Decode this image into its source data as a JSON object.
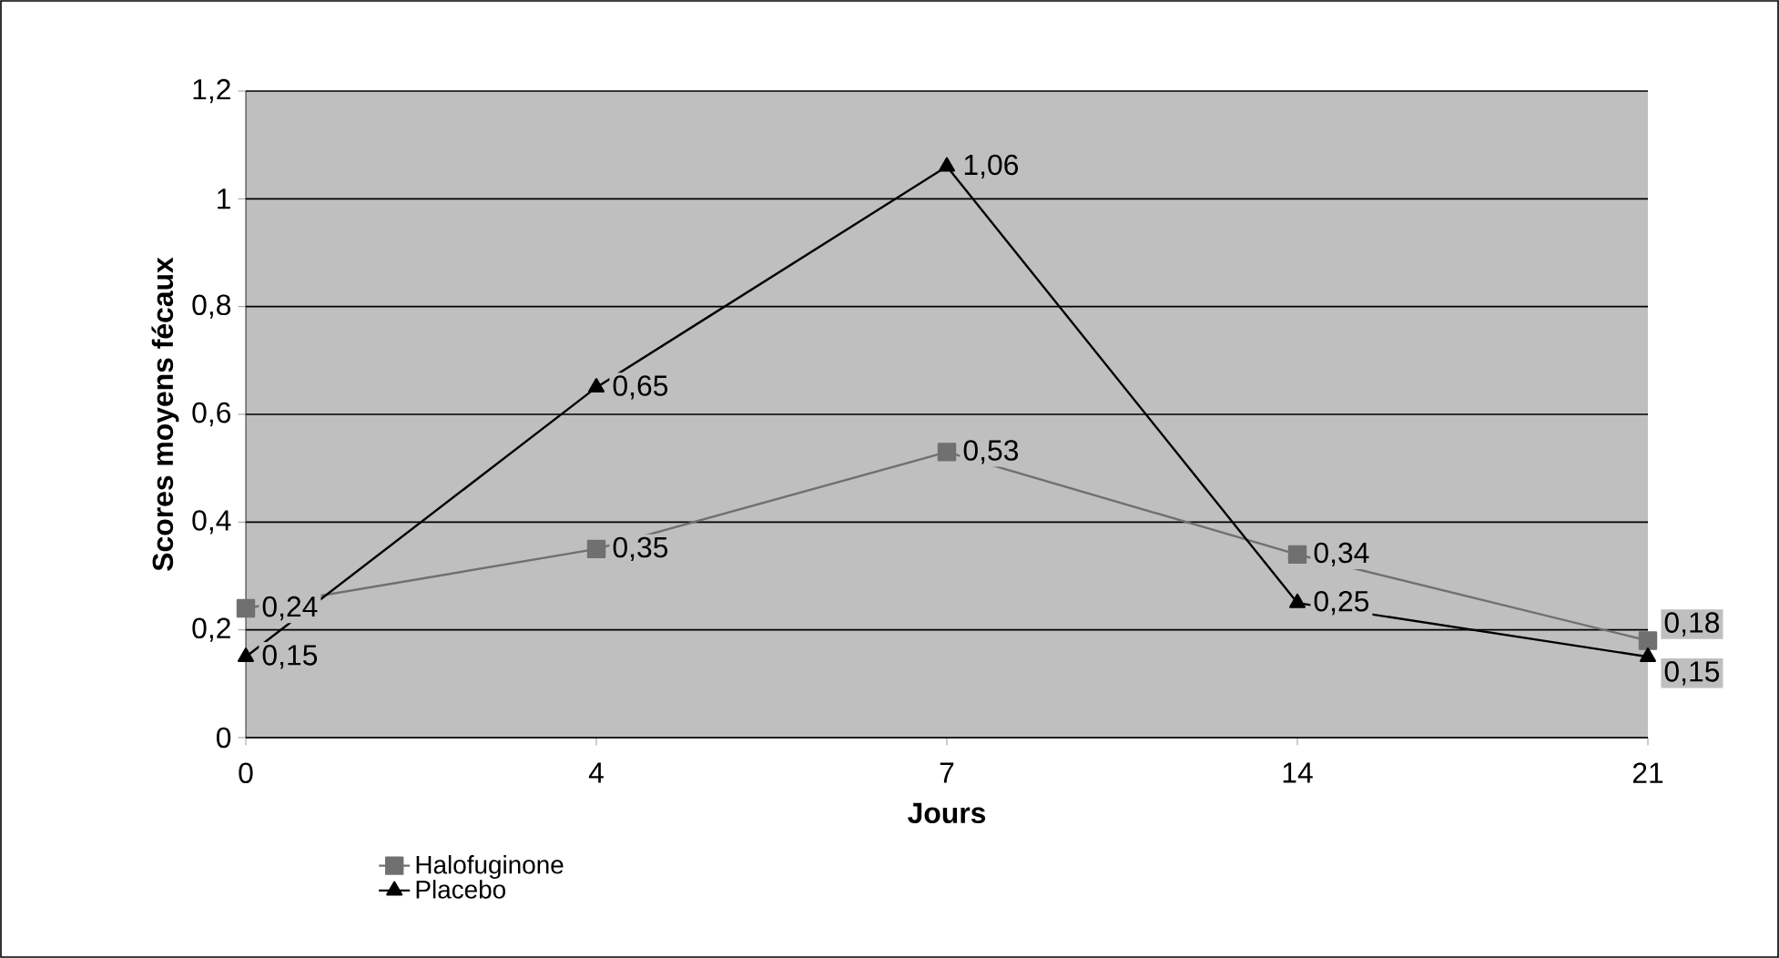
{
  "chart_data": {
    "type": "line",
    "xlabel": "Jours",
    "ylabel": "Scores moyens fécaux",
    "categories": [
      "0",
      "4",
      "7",
      "14",
      "21"
    ],
    "series": [
      {
        "name": "Halofuginone",
        "color": "#707070",
        "marker": "square",
        "values": [
          0.24,
          0.35,
          0.53,
          0.34,
          0.18
        ],
        "value_labels": [
          "0,24",
          "0,35",
          "0,53",
          "0,34",
          "0,18"
        ]
      },
      {
        "name": "Placebo",
        "color": "#000000",
        "marker": "triangle",
        "values": [
          0.15,
          0.65,
          1.06,
          0.25,
          0.15
        ],
        "value_labels": [
          "0,15",
          "0,65",
          "1,06",
          "0,25",
          "0,15"
        ]
      }
    ],
    "ylim": [
      0,
      1.2
    ],
    "yticks": [
      0,
      {
        "value": 0.2,
        "label": "0,2"
      },
      {
        "value": 0.4,
        "label": "0,4"
      },
      {
        "value": 0.6,
        "label": "0,6"
      },
      {
        "value": 0.8,
        "label": "0,8"
      },
      1,
      {
        "value": 1.2,
        "label": "1,2"
      }
    ],
    "grid": "y",
    "legend": "bottom left",
    "line_style": "solid"
  }
}
